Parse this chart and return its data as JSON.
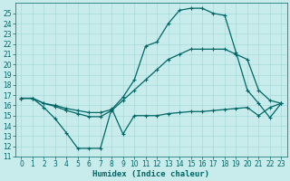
{
  "bg_color": "#c8ecec",
  "grid_color": "#a8d8d8",
  "line_color": "#006666",
  "xlabel": "Humidex (Indice chaleur)",
  "xlim": [
    -0.5,
    23.5
  ],
  "ylim": [
    11,
    26
  ],
  "xticks": [
    0,
    1,
    2,
    3,
    4,
    5,
    6,
    7,
    8,
    9,
    10,
    11,
    12,
    13,
    14,
    15,
    16,
    17,
    18,
    19,
    20,
    21,
    22,
    23
  ],
  "yticks": [
    11,
    12,
    13,
    14,
    15,
    16,
    17,
    18,
    19,
    20,
    21,
    22,
    23,
    24,
    25
  ],
  "line1_x": [
    0,
    1,
    2,
    3,
    4,
    5,
    6,
    7,
    8,
    9,
    10,
    11,
    12,
    13,
    14,
    15,
    16,
    17,
    18,
    19,
    20,
    21,
    22,
    23
  ],
  "line1_y": [
    16.7,
    16.7,
    15.8,
    14.7,
    13.3,
    11.8,
    11.8,
    11.8,
    15.7,
    13.2,
    15.0,
    15.0,
    15.0,
    15.2,
    15.3,
    15.4,
    15.4,
    15.5,
    15.6,
    15.7,
    15.8,
    15.0,
    15.8,
    16.2
  ],
  "line2_x": [
    0,
    1,
    2,
    3,
    4,
    5,
    6,
    7,
    8,
    9,
    10,
    11,
    12,
    13,
    14,
    15,
    16,
    17,
    18,
    19,
    20,
    21,
    22,
    23
  ],
  "line2_y": [
    16.7,
    16.7,
    16.2,
    15.9,
    15.5,
    15.2,
    14.9,
    14.9,
    15.5,
    16.5,
    17.5,
    18.5,
    19.5,
    20.5,
    21.0,
    21.5,
    21.5,
    21.5,
    21.5,
    21.0,
    20.5,
    17.5,
    16.5,
    16.2
  ],
  "line3_x": [
    0,
    1,
    2,
    3,
    4,
    5,
    6,
    7,
    8,
    9,
    10,
    11,
    12,
    13,
    14,
    15,
    16,
    17,
    18,
    19,
    20,
    21,
    22,
    23
  ],
  "line3_y": [
    16.7,
    16.7,
    16.2,
    16.0,
    15.7,
    15.5,
    15.3,
    15.3,
    15.6,
    16.8,
    18.5,
    21.8,
    22.2,
    24.0,
    25.3,
    25.5,
    25.5,
    25.0,
    24.8,
    21.2,
    17.5,
    16.2,
    14.8,
    16.2
  ],
  "tick_fontsize": 5.5,
  "xlabel_fontsize": 6.5,
  "linewidth": 0.9,
  "markersize": 2.5
}
